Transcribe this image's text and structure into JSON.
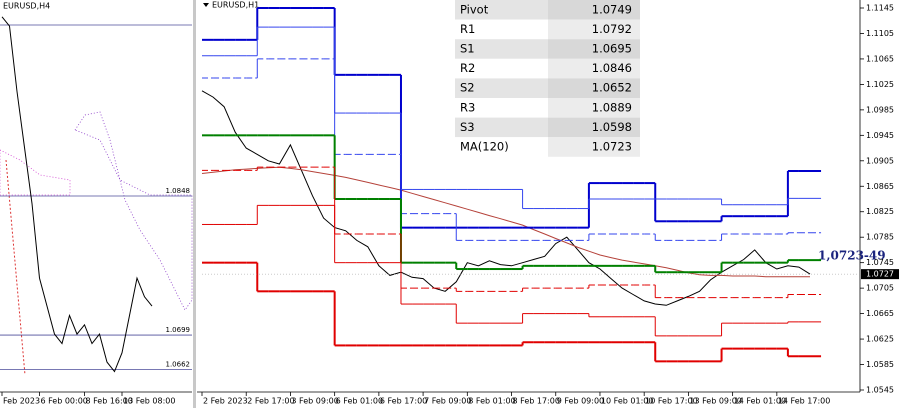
{
  "chart_data": [
    {
      "type": "line",
      "title": "EURUSD,H4",
      "categories": [
        "Feb 2023",
        null,
        null,
        null,
        null,
        "6 Feb 00:00",
        null,
        null,
        null,
        null,
        null,
        "8 Feb 16:00",
        null,
        null,
        null,
        null,
        "13 Feb 08:00",
        null,
        null,
        null,
        null
      ],
      "series": [
        {
          "color": "#000000",
          "values": [
            1.104,
            1.103,
            1.096,
            1.09,
            1.084,
            1.076,
            1.073,
            1.07,
            1.069,
            1.072,
            1.07,
            1.071,
            1.069,
            1.07,
            1.067,
            1.066,
            1.068,
            1.072,
            1.076,
            1.074,
            1.073
          ]
        }
      ],
      "levels": [
        1.0848,
        1.0699,
        1.0662
      ],
      "ylim": [
        1.0638,
        1.1058
      ]
    },
    {
      "type": "line",
      "title": "EURUSD,H1",
      "categories": [
        "2 Feb 2023",
        null,
        null,
        null,
        "2 Feb 17:00",
        null,
        null,
        null,
        "3 Feb 09:00",
        null,
        null,
        null,
        "6 Feb 01:00",
        null,
        null,
        null,
        "6 Feb 17:00",
        null,
        null,
        null,
        "7 Feb 09:00",
        null,
        null,
        null,
        "8 Feb 01:00",
        null,
        null,
        null,
        "8 Feb 17:00",
        null,
        null,
        null,
        "9 Feb 09:00",
        null,
        null,
        null,
        "10 Feb 01:00",
        null,
        null,
        null,
        "10 Feb 17:00",
        null,
        null,
        null,
        "13 Feb 09:00",
        null,
        null,
        null,
        "14 Feb 01:00",
        null,
        null,
        null,
        "14 Feb 17:00",
        null,
        null,
        null
      ],
      "series": [
        {
          "color": "#000000",
          "style": "thin",
          "values": [
            1.1015,
            1.1005,
            1.099,
            1.095,
            1.0925,
            1.0915,
            1.0905,
            1.09,
            1.093,
            1.089,
            1.085,
            1.0815,
            1.08,
            1.0795,
            1.078,
            1.077,
            1.074,
            1.0725,
            1.073,
            1.0722,
            1.072,
            1.0705,
            1.07,
            1.0715,
            1.0745,
            1.074,
            1.0748,
            1.0742,
            1.074,
            1.0745,
            1.075,
            1.0755,
            1.0775,
            1.0785,
            1.0765,
            1.0745,
            1.0735,
            1.072,
            1.0705,
            1.0695,
            1.0685,
            1.068,
            1.0678,
            1.0685,
            1.0692,
            1.07,
            1.0718,
            1.073,
            1.074,
            1.075,
            1.0765,
            1.0745,
            1.0735,
            1.074,
            1.0738,
            1.0727
          ]
        },
        {
          "color": "#b5423a",
          "style": "thin",
          "values": [
            1.0885,
            1.0887,
            1.0889,
            1.0891,
            1.0892,
            1.0893,
            1.0894,
            1.0895,
            1.0893,
            1.0891,
            1.0888,
            1.0885,
            1.0882,
            1.0879,
            1.0875,
            1.0871,
            1.0867,
            1.0863,
            1.0859,
            1.0854,
            1.0849,
            1.0844,
            1.0839,
            1.0834,
            1.0829,
            1.0824,
            1.0819,
            1.0814,
            1.0809,
            1.0804,
            1.0797,
            1.079,
            1.0783,
            1.0776,
            1.0769,
            1.0763,
            1.0757,
            1.0753,
            1.0749,
            1.0746,
            1.0743,
            1.074,
            1.0737,
            1.0733,
            1.0729,
            1.0726,
            1.0725,
            1.0725,
            1.0724,
            1.0724,
            1.0724,
            1.0723,
            1.0723,
            1.0723,
            1.0723,
            1.0723
          ]
        },
        {
          "color": "#0000cd",
          "style": "thick",
          "step": true,
          "values": [
            1.1095,
            1.1095,
            1.1095,
            1.1095,
            1.1095,
            1.1145,
            1.1145,
            1.1145,
            1.1145,
            1.1145,
            1.1145,
            1.1145,
            1.104,
            1.104,
            1.104,
            1.104,
            1.104,
            1.104,
            1.08,
            1.08,
            1.08,
            1.08,
            1.08,
            1.08,
            1.08,
            1.08,
            1.08,
            1.08,
            1.08,
            1.08,
            1.08,
            1.08,
            1.08,
            1.08,
            1.08,
            1.087,
            1.087,
            1.087,
            1.087,
            1.087,
            1.087,
            1.081,
            1.081,
            1.081,
            1.081,
            1.081,
            1.081,
            1.0818,
            1.0818,
            1.0818,
            1.0818,
            1.0818,
            1.0818,
            1.0889,
            1.0889,
            1.0889
          ]
        },
        {
          "color": "#3344ee",
          "style": "thin",
          "step": true,
          "values": [
            1.107,
            1.107,
            1.107,
            1.107,
            1.107,
            1.1115,
            1.1115,
            1.1115,
            1.1115,
            1.1115,
            1.1115,
            1.1115,
            1.098,
            1.098,
            1.098,
            1.098,
            1.098,
            1.098,
            1.086,
            1.086,
            1.086,
            1.086,
            1.086,
            1.086,
            1.086,
            1.086,
            1.086,
            1.086,
            1.086,
            1.083,
            1.083,
            1.083,
            1.083,
            1.083,
            1.083,
            1.0845,
            1.0845,
            1.0845,
            1.0845,
            1.0845,
            1.0845,
            1.0845,
            1.0845,
            1.0845,
            1.0845,
            1.0845,
            1.0845,
            1.0836,
            1.0836,
            1.0836,
            1.0836,
            1.0836,
            1.0836,
            1.0846,
            1.0846,
            1.0846
          ]
        },
        {
          "color": "#3344ee",
          "style": "dashed",
          "step": true,
          "values": [
            1.1035,
            1.1035,
            1.1035,
            1.1035,
            1.1035,
            1.1065,
            1.1065,
            1.1065,
            1.1065,
            1.1065,
            1.1065,
            1.1065,
            1.0915,
            1.0915,
            1.0915,
            1.0915,
            1.0915,
            1.0915,
            1.0822,
            1.0822,
            1.0822,
            1.0822,
            1.0822,
            1.078,
            1.078,
            1.078,
            1.078,
            1.078,
            1.078,
            1.078,
            1.078,
            1.078,
            1.078,
            1.078,
            1.078,
            1.079,
            1.079,
            1.079,
            1.079,
            1.079,
            1.079,
            1.078,
            1.078,
            1.078,
            1.078,
            1.078,
            1.078,
            1.079,
            1.079,
            1.079,
            1.079,
            1.079,
            1.079,
            1.0792,
            1.0792,
            1.0792
          ]
        },
        {
          "color": "#008000",
          "style": "thick",
          "step": true,
          "values": [
            1.0945,
            1.0945,
            1.0945,
            1.0945,
            1.0945,
            1.0945,
            1.0945,
            1.0945,
            1.0945,
            1.0945,
            1.0945,
            1.0945,
            1.0845,
            1.0845,
            1.0845,
            1.0845,
            1.0845,
            1.0845,
            1.0745,
            1.0745,
            1.0745,
            1.0745,
            1.0745,
            1.0735,
            1.0735,
            1.0735,
            1.0735,
            1.0735,
            1.0735,
            1.074,
            1.074,
            1.074,
            1.074,
            1.074,
            1.074,
            1.074,
            1.074,
            1.074,
            1.074,
            1.074,
            1.074,
            1.073,
            1.073,
            1.073,
            1.073,
            1.073,
            1.073,
            1.0745,
            1.0745,
            1.0745,
            1.0745,
            1.0745,
            1.0745,
            1.0749,
            1.0749,
            1.0749
          ]
        },
        {
          "color": "#e00000",
          "style": "dashed",
          "step": true,
          "values": [
            1.089,
            1.089,
            1.089,
            1.089,
            1.089,
            1.0895,
            1.0895,
            1.0895,
            1.0895,
            1.0895,
            1.0895,
            1.0895,
            1.079,
            1.079,
            1.079,
            1.079,
            1.079,
            1.079,
            1.0705,
            1.0705,
            1.0705,
            1.0705,
            1.0705,
            1.07,
            1.07,
            1.07,
            1.07,
            1.07,
            1.07,
            1.0705,
            1.0705,
            1.0705,
            1.0705,
            1.0705,
            1.0705,
            1.071,
            1.071,
            1.071,
            1.071,
            1.071,
            1.071,
            1.069,
            1.069,
            1.069,
            1.069,
            1.069,
            1.069,
            1.069,
            1.069,
            1.069,
            1.069,
            1.069,
            1.069,
            1.0695,
            1.0695,
            1.0695
          ]
        },
        {
          "color": "#e00000",
          "style": "thin",
          "step": true,
          "values": [
            1.0805,
            1.0805,
            1.0805,
            1.0805,
            1.0805,
            1.0835,
            1.0835,
            1.0835,
            1.0835,
            1.0835,
            1.0835,
            1.0835,
            1.0745,
            1.0745,
            1.0745,
            1.0745,
            1.0745,
            1.0745,
            1.068,
            1.068,
            1.068,
            1.068,
            1.068,
            1.065,
            1.065,
            1.065,
            1.065,
            1.065,
            1.065,
            1.0665,
            1.0665,
            1.0665,
            1.0665,
            1.0665,
            1.0665,
            1.066,
            1.066,
            1.066,
            1.066,
            1.066,
            1.066,
            1.063,
            1.063,
            1.063,
            1.063,
            1.063,
            1.063,
            1.065,
            1.065,
            1.065,
            1.065,
            1.065,
            1.065,
            1.0652,
            1.0652,
            1.0652
          ]
        },
        {
          "color": "#e00000",
          "style": "thick",
          "step": true,
          "values": [
            1.0745,
            1.0745,
            1.0745,
            1.0745,
            1.0745,
            1.07,
            1.07,
            1.07,
            1.07,
            1.07,
            1.07,
            1.07,
            1.0615,
            1.0615,
            1.0615,
            1.0615,
            1.0615,
            1.0615,
            1.0615,
            1.0615,
            1.0615,
            1.0615,
            1.0615,
            1.0615,
            1.0615,
            1.0615,
            1.0615,
            1.0615,
            1.0615,
            1.062,
            1.062,
            1.062,
            1.062,
            1.062,
            1.062,
            1.062,
            1.062,
            1.062,
            1.062,
            1.062,
            1.062,
            1.059,
            1.059,
            1.059,
            1.059,
            1.059,
            1.059,
            1.061,
            1.061,
            1.061,
            1.061,
            1.061,
            1.061,
            1.0598,
            1.0598,
            1.0598
          ]
        }
      ],
      "ylim": [
        1.0545,
        1.1145
      ],
      "yticks": [
        1.1145,
        1.1105,
        1.1065,
        1.1025,
        1.0985,
        1.0945,
        1.0905,
        1.0865,
        1.0825,
        1.0785,
        1.0745,
        1.0705,
        1.0665,
        1.0625,
        1.0585,
        1.0545
      ],
      "last_price": 1.0727,
      "annotation": "1,0723-49",
      "table": {
        "rows": [
          [
            "Pivot",
            1.0749
          ],
          [
            "R1",
            1.0792
          ],
          [
            "S1",
            1.0695
          ],
          [
            "R2",
            1.0846
          ],
          [
            "S2",
            1.0652
          ],
          [
            "R3",
            1.0889
          ],
          [
            "S3",
            1.0598
          ],
          [
            "MA(120)",
            1.0723
          ]
        ]
      }
    }
  ]
}
